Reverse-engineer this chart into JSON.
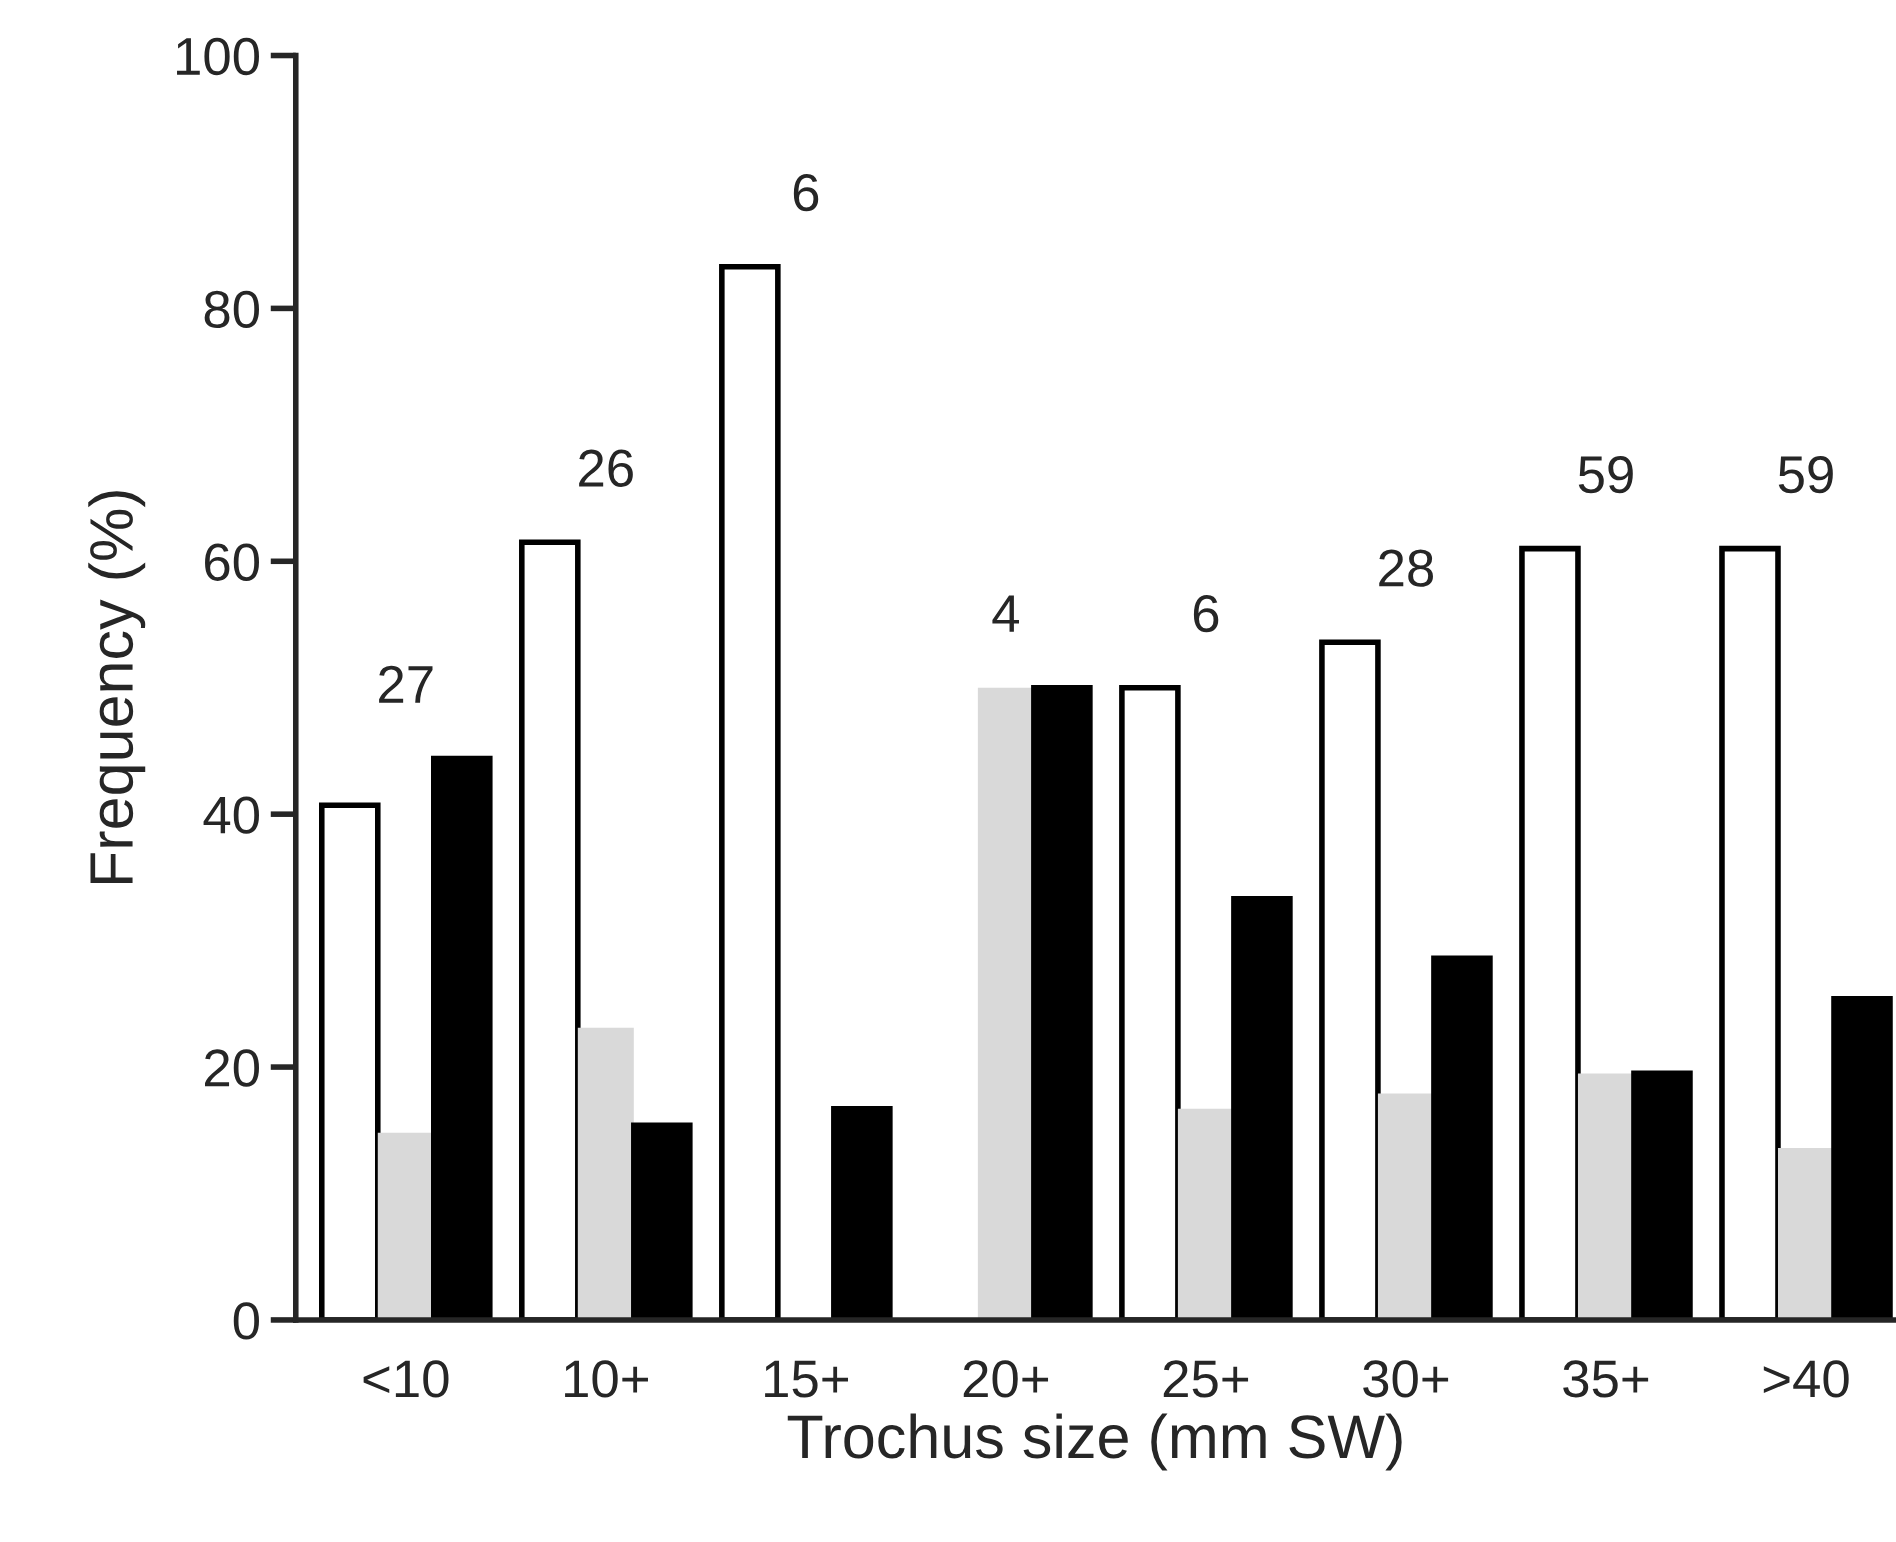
{
  "chart_data": {
    "type": "bar",
    "xlabel": "Trochus size (mm SW)",
    "ylabel": "Frequency (%)",
    "categories": [
      "<10",
      "10+",
      "15+",
      "20+",
      "25+",
      "30+",
      "35+",
      ">40"
    ],
    "series": [
      {
        "color": "#ffffff",
        "values": [
          40.7,
          61.5,
          83.3,
          0,
          50,
          53.6,
          61.0,
          61.0
        ]
      },
      {
        "color": "#d9d9d9",
        "values": [
          14.8,
          23.1,
          0,
          50,
          16.7,
          17.9,
          19.5,
          13.6
        ]
      },
      {
        "color": "#000000",
        "values": [
          44.4,
          15.4,
          16.7,
          50,
          33.3,
          28.6,
          19.5,
          25.4
        ]
      }
    ],
    "ylim": [
      0,
      100
    ],
    "yticks": [
      0,
      20,
      40,
      60,
      80,
      100
    ],
    "grid": false,
    "legend": false,
    "annotations": [
      "27",
      "26",
      "6",
      "4",
      "6",
      "28",
      "59",
      "59"
    ]
  }
}
